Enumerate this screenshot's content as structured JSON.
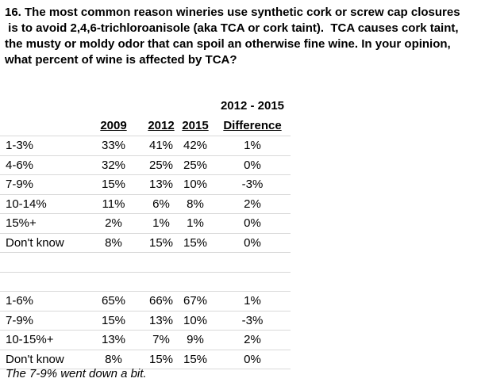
{
  "question": {
    "lines": [
      "16. The most common reason wineries use synthetic cork or screw cap closures",
      " is to avoid 2,4,6-trichloroanisole (aka TCA or cork taint).  TCA causes cork taint,",
      "the musty or moldy odor that can spoil an otherwise fine wine. In your opinion,",
      "what percent of wine is affected by TCA?"
    ]
  },
  "table": {
    "header_top": "2012 - 2015",
    "columns": [
      "2009",
      "2012",
      "2015",
      "Difference"
    ],
    "section1": [
      {
        "label": "1-3%",
        "v2009": "33%",
        "v2012": "41%",
        "v2015": "42%",
        "diff": "1%"
      },
      {
        "label": "4-6%",
        "v2009": "32%",
        "v2012": "25%",
        "v2015": "25%",
        "diff": "0%"
      },
      {
        "label": "7-9%",
        "v2009": "15%",
        "v2012": "13%",
        "v2015": "10%",
        "diff": "-3%"
      },
      {
        "label": "10-14%",
        "v2009": "11%",
        "v2012": "6%",
        "v2015": "8%",
        "diff": "2%"
      },
      {
        "label": "15%+",
        "v2009": "2%",
        "v2012": "1%",
        "v2015": "1%",
        "diff": "0%"
      },
      {
        "label": "Don't know",
        "v2009": "8%",
        "v2012": "15%",
        "v2015": "15%",
        "diff": "0%"
      }
    ],
    "section2": [
      {
        "label": "1-6%",
        "v2009": "65%",
        "v2012": "66%",
        "v2015": "67%",
        "diff": "1%"
      },
      {
        "label": "7-9%",
        "v2009": "15%",
        "v2012": "13%",
        "v2015": "10%",
        "diff": "-3%"
      },
      {
        "label": "10-15%+",
        "v2009": "13%",
        "v2012": "7%",
        "v2015": "9%",
        "diff": "2%"
      },
      {
        "label": "Don't know",
        "v2009": "8%",
        "v2012": "15%",
        "v2015": "15%",
        "diff": "0%"
      }
    ]
  },
  "note": "The 7-9% went down a bit."
}
